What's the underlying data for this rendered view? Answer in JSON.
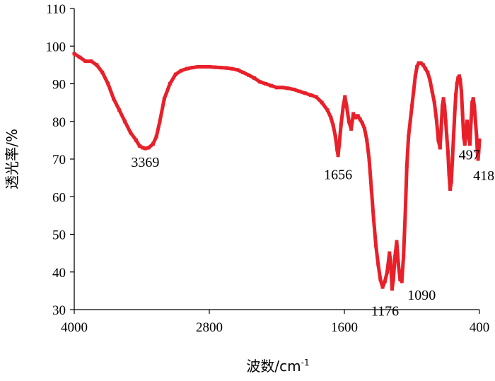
{
  "chart_data": {
    "type": "line",
    "title": "",
    "xlabel": "波数/cm",
    "xlabel_superscript": "-1",
    "ylabel": "透光率/%",
    "xlim": [
      4000,
      400
    ],
    "ylim": [
      30,
      110
    ],
    "x_reversed": true,
    "grid": false,
    "legend": "none",
    "x_ticks": [
      4000,
      2800,
      1600,
      400
    ],
    "y_ticks": [
      30,
      40,
      50,
      60,
      70,
      80,
      90,
      100,
      110
    ],
    "series": [
      {
        "color": "#e8202a",
        "x": [
          4000,
          3950,
          3900,
          3850,
          3800,
          3750,
          3700,
          3650,
          3600,
          3550,
          3500,
          3450,
          3420,
          3390,
          3369,
          3340,
          3300,
          3270,
          3240,
          3200,
          3150,
          3100,
          3050,
          3000,
          2950,
          2900,
          2850,
          2800,
          2750,
          2700,
          2650,
          2600,
          2550,
          2500,
          2450,
          2400,
          2350,
          2300,
          2250,
          2200,
          2150,
          2100,
          2050,
          2000,
          1950,
          1900,
          1850,
          1800,
          1750,
          1720,
          1700,
          1680,
          1665,
          1656,
          1645,
          1630,
          1610,
          1595,
          1580,
          1560,
          1540,
          1520,
          1500,
          1480,
          1460,
          1440,
          1420,
          1400,
          1380,
          1360,
          1340,
          1320,
          1300,
          1280,
          1260,
          1240,
          1220,
          1200,
          1190,
          1176,
          1165,
          1150,
          1135,
          1120,
          1105,
          1090,
          1075,
          1060,
          1045,
          1030,
          1015,
          1000,
          985,
          970,
          955,
          940,
          920,
          900,
          880,
          860,
          840,
          820,
          800,
          780,
          765,
          750,
          740,
          730,
          720,
          710,
          700,
          690,
          680,
          670,
          660,
          650,
          640,
          630,
          620,
          610,
          600,
          590,
          580,
          570,
          560,
          550,
          540,
          530,
          520,
          510,
          497,
          485,
          475,
          465,
          455,
          445,
          435,
          425,
          418,
          412,
          406,
          400
        ],
        "y": [
          98,
          97,
          96,
          96,
          95,
          93,
          90,
          86,
          83,
          80,
          77,
          75,
          73.5,
          73,
          72.8,
          73,
          74,
          76,
          80,
          86,
          90,
          92.5,
          93.5,
          94,
          94.3,
          94.5,
          94.5,
          94.5,
          94.4,
          94.3,
          94.2,
          94,
          93.7,
          93,
          92.3,
          91.5,
          90.5,
          90,
          89.5,
          89,
          89,
          88.8,
          88.5,
          88,
          87.5,
          87,
          86.5,
          85,
          83,
          81,
          79,
          76,
          72.5,
          71,
          74,
          79,
          84,
          86.5,
          84,
          80,
          78,
          82,
          81,
          81.5,
          80.5,
          79.5,
          78,
          75,
          70,
          62,
          54,
          47,
          42,
          38,
          36,
          37.5,
          40,
          45,
          43,
          35.5,
          38,
          44,
          48,
          42,
          38,
          37.5,
          44,
          55,
          68,
          76,
          80,
          84,
          88,
          92,
          94.5,
          95.5,
          95.5,
          95,
          94,
          93,
          91,
          88,
          85,
          80,
          75,
          73,
          78,
          84,
          86,
          84,
          80,
          76,
          72,
          66,
          62,
          64,
          70,
          76,
          82,
          87,
          90,
          91.5,
          92,
          91,
          88,
          82,
          76,
          74,
          77,
          80,
          76,
          74,
          80,
          85,
          86,
          84,
          80,
          76,
          72,
          70,
          72,
          75
        ]
      }
    ],
    "annotations": [
      {
        "text": "3369",
        "x": 3369,
        "y": 72.8
      },
      {
        "text": "1656",
        "x": 1656,
        "y": 71
      },
      {
        "text": "1176",
        "x": 1176,
        "y": 35.5
      },
      {
        "text": "1090",
        "x": 1090,
        "y": 37.5
      },
      {
        "text": "497",
        "x": 497,
        "y": 74
      },
      {
        "text": "418",
        "x": 418,
        "y": 70
      }
    ]
  }
}
